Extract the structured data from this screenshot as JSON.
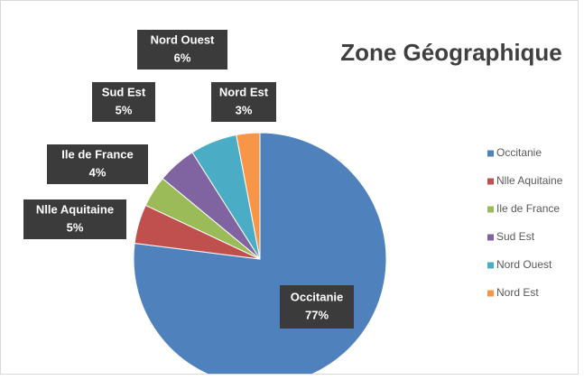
{
  "chart_data": {
    "type": "pie",
    "title": "Zone Géographique",
    "categories": [
      "Occitanie",
      "Nlle Aquitaine",
      "Ile de France",
      "Sud Est",
      "Nord Ouest",
      "Nord Est"
    ],
    "values": [
      77,
      5,
      4,
      5,
      6,
      3
    ],
    "value_labels": [
      "77%",
      "5%",
      "4%",
      "5%",
      "6%",
      "3%"
    ],
    "colors": [
      "#4f81bd",
      "#c0504d",
      "#9bbb59",
      "#8064a2",
      "#4bacc6",
      "#f79646"
    ],
    "legend": "right"
  }
}
